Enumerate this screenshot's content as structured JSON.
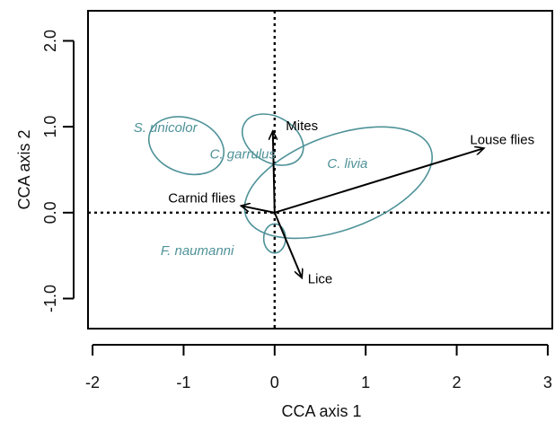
{
  "chart_data": {
    "type": "scatter",
    "title": "",
    "xlabel": "CCA axis 1",
    "ylabel": "CCA axis 2",
    "xlim": [
      -2.05,
      3.05
    ],
    "ylim": [
      -1.35,
      2.35
    ],
    "x_ticks": [
      -2,
      -1,
      0,
      1,
      2,
      3
    ],
    "x_tick_labels": [
      "-2",
      "-1",
      "0",
      "1",
      "2",
      "3"
    ],
    "y_ticks": [
      -1,
      0,
      1,
      2
    ],
    "y_tick_labels": [
      "-1.0",
      "0.0",
      "1.0",
      "2.0"
    ],
    "reference_lines": {
      "x": 0,
      "y": 0,
      "style": "dotted"
    },
    "grid": false,
    "species_color": "#4e9298",
    "vector_color": "#000000",
    "species_ellipses": [
      {
        "name": "S. unicolor",
        "center": [
          -0.97,
          0.78
        ],
        "rx": 0.3,
        "ry": 0.45,
        "angle": 70
      },
      {
        "name": "C. garrulus",
        "center": [
          -0.02,
          0.85
        ],
        "rx": 0.25,
        "ry": 0.38,
        "angle": 60
      },
      {
        "name": "C. livia",
        "center": [
          0.7,
          0.35
        ],
        "rx": 1.08,
        "ry": 0.55,
        "angle": 20
      },
      {
        "name": "F. naumanni",
        "center": [
          0.0,
          -0.3
        ],
        "rx": 0.12,
        "ry": 0.17,
        "angle": 0
      }
    ],
    "species_labels": [
      {
        "text": "S. unicolor",
        "x": -1.2,
        "y": 0.98
      },
      {
        "text": "C. garrulus",
        "x": -0.35,
        "y": 0.67
      },
      {
        "text": "C. livia",
        "x": 0.8,
        "y": 0.56
      },
      {
        "text": "F. naumanni",
        "x": -0.85,
        "y": -0.45
      }
    ],
    "vectors": [
      {
        "label": "Mites",
        "x": -0.02,
        "y": 0.95
      },
      {
        "label": "Louse flies",
        "x": 2.3,
        "y": 0.75
      },
      {
        "label": "Carnid flies",
        "x": -0.37,
        "y": 0.08
      },
      {
        "label": "Lice",
        "x": 0.3,
        "y": -0.76
      }
    ],
    "vector_labels": [
      {
        "text": "Mites",
        "x": 0.3,
        "y": 1.0
      },
      {
        "text": "Louse flies",
        "x": 2.5,
        "y": 0.84
      },
      {
        "text": "Carnid flies",
        "x": -0.8,
        "y": 0.16
      },
      {
        "text": "Lice",
        "x": 0.5,
        "y": -0.78
      }
    ]
  }
}
